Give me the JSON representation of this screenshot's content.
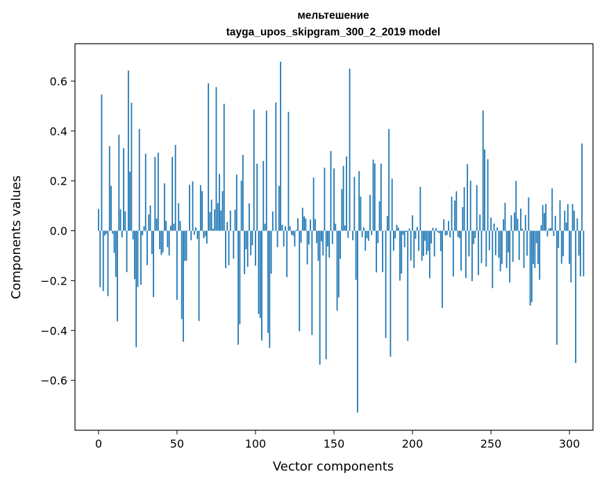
{
  "chart_data": {
    "type": "bar",
    "title_lines": [
      "мельтешение",
      "tayga_upos_skipgram_300_2_2019 model"
    ],
    "xlabel": "Vector components",
    "ylabel": "Components values",
    "xlim": [
      -15,
      315
    ],
    "ylim": [
      -0.8,
      0.75
    ],
    "xticks": [
      0,
      50,
      100,
      150,
      200,
      250,
      300
    ],
    "yticks": [
      -0.6,
      -0.4,
      -0.2,
      0.0,
      0.2,
      0.4,
      0.6
    ],
    "xtick_labels": [
      "0",
      "50",
      "100",
      "150",
      "200",
      "250",
      "300"
    ],
    "ytick_labels": [
      "−0.6",
      "−0.4",
      "−0.2",
      "0.0",
      "0.2",
      "0.4",
      "0.6"
    ],
    "grid": false,
    "bar_color": "#1f77b4",
    "values": [
      0.087,
      -0.226,
      0.546,
      -0.242,
      -0.019,
      -0.012,
      -0.262,
      0.339,
      0.18,
      -0.012,
      -0.089,
      -0.185,
      -0.363,
      0.385,
      0.086,
      -0.027,
      0.331,
      0.078,
      -0.166,
      0.643,
      0.237,
      0.513,
      -0.035,
      -0.194,
      -0.467,
      -0.226,
      0.408,
      -0.217,
      -0.018,
      0.018,
      0.309,
      -0.138,
      0.065,
      0.101,
      -0.093,
      -0.266,
      0.296,
      0.049,
      0.313,
      -0.074,
      -0.097,
      -0.087,
      0.19,
      0.04,
      -0.066,
      -0.099,
      0.02,
      0.296,
      0.028,
      0.344,
      -0.277,
      0.111,
      0.039,
      -0.354,
      -0.445,
      -0.121,
      -0.12,
      0.0,
      0.184,
      -0.038,
      0.198,
      -0.016,
      0.014,
      -0.033,
      -0.362,
      0.183,
      0.159,
      -0.03,
      -0.022,
      -0.052,
      0.591,
      0.075,
      0.125,
      0.008,
      0.086,
      0.576,
      0.111,
      0.228,
      0.081,
      0.159,
      0.509,
      -0.15,
      0.035,
      -0.138,
      0.081,
      0.0,
      -0.112,
      0.085,
      0.225,
      -0.457,
      -0.375,
      0.201,
      0.304,
      -0.174,
      -0.074,
      -0.145,
      0.11,
      -0.098,
      -0.058,
      0.486,
      -0.14,
      0.269,
      -0.333,
      -0.35,
      -0.44,
      0.28,
      0.028,
      0.482,
      -0.41,
      -0.47,
      -0.172,
      0.077,
      0.0,
      0.515,
      -0.066,
      0.18,
      0.678,
      0.024,
      -0.063,
      0.018,
      -0.186,
      0.477,
      0.018,
      -0.016,
      -0.02,
      -0.063,
      0.004,
      0.05,
      -0.403,
      -0.048,
      0.092,
      0.058,
      0.049,
      -0.135,
      -0.055,
      0.045,
      -0.418,
      0.213,
      0.047,
      -0.05,
      -0.12,
      -0.537,
      -0.042,
      -0.099,
      0.253,
      -0.515,
      -0.063,
      -0.108,
      0.32,
      -0.053,
      0.25,
      0.028,
      -0.32,
      -0.267,
      -0.112,
      0.167,
      0.26,
      0.021,
      0.298,
      -0.029,
      0.65,
      0.0,
      -0.038,
      0.216,
      -0.197,
      -0.729,
      0.239,
      0.137,
      -0.026,
      0.014,
      -0.08,
      -0.03,
      -0.04,
      0.144,
      -0.017,
      0.285,
      0.27,
      -0.167,
      -0.05,
      0.118,
      0.269,
      -0.166,
      -0.002,
      -0.43,
      0.059,
      0.408,
      -0.505,
      0.209,
      -0.08,
      -0.031,
      0.024,
      0.013,
      -0.2,
      -0.172,
      -0.016,
      -0.066,
      -0.004,
      -0.442,
      0.009,
      -0.12,
      0.062,
      -0.15,
      -0.032,
      0.015,
      -0.081,
      0.176,
      -0.12,
      -0.101,
      -0.04,
      -0.096,
      -0.081,
      -0.19,
      -0.051,
      0.012,
      -0.103,
      0.011,
      -0.005,
      -0.01,
      -0.082,
      -0.31,
      0.046,
      -0.019,
      -0.017,
      0.039,
      -0.027,
      0.137,
      -0.183,
      0.121,
      0.158,
      -0.025,
      -0.03,
      -0.16,
      0.095,
      0.175,
      -0.19,
      0.267,
      -0.103,
      0.201,
      -0.202,
      -0.053,
      -0.029,
      0.183,
      -0.178,
      0.065,
      -0.129,
      0.482,
      0.326,
      -0.144,
      0.287,
      -0.078,
      0.053,
      -0.23,
      0.029,
      -0.098,
      0.013,
      -0.108,
      -0.163,
      -0.133,
      0.046,
      0.112,
      -0.15,
      -0.087,
      -0.207,
      0.062,
      -0.125,
      0.073,
      0.2,
      0.048,
      -0.117,
      0.089,
      0.008,
      -0.15,
      0.063,
      -0.1,
      0.134,
      -0.3,
      -0.286,
      -0.133,
      -0.15,
      -0.05,
      -0.133,
      -0.197,
      0.022,
      0.103,
      0.071,
      0.108,
      -0.023,
      0.009,
      0.011,
      0.17,
      -0.021,
      0.06,
      -0.457,
      -0.069,
      0.122,
      -0.132,
      -0.102,
      0.081,
      0.033,
      0.107,
      -0.133,
      -0.207,
      0.107,
      0.08,
      -0.53,
      0.05,
      -0.1,
      -0.183,
      0.35,
      -0.183
    ]
  }
}
